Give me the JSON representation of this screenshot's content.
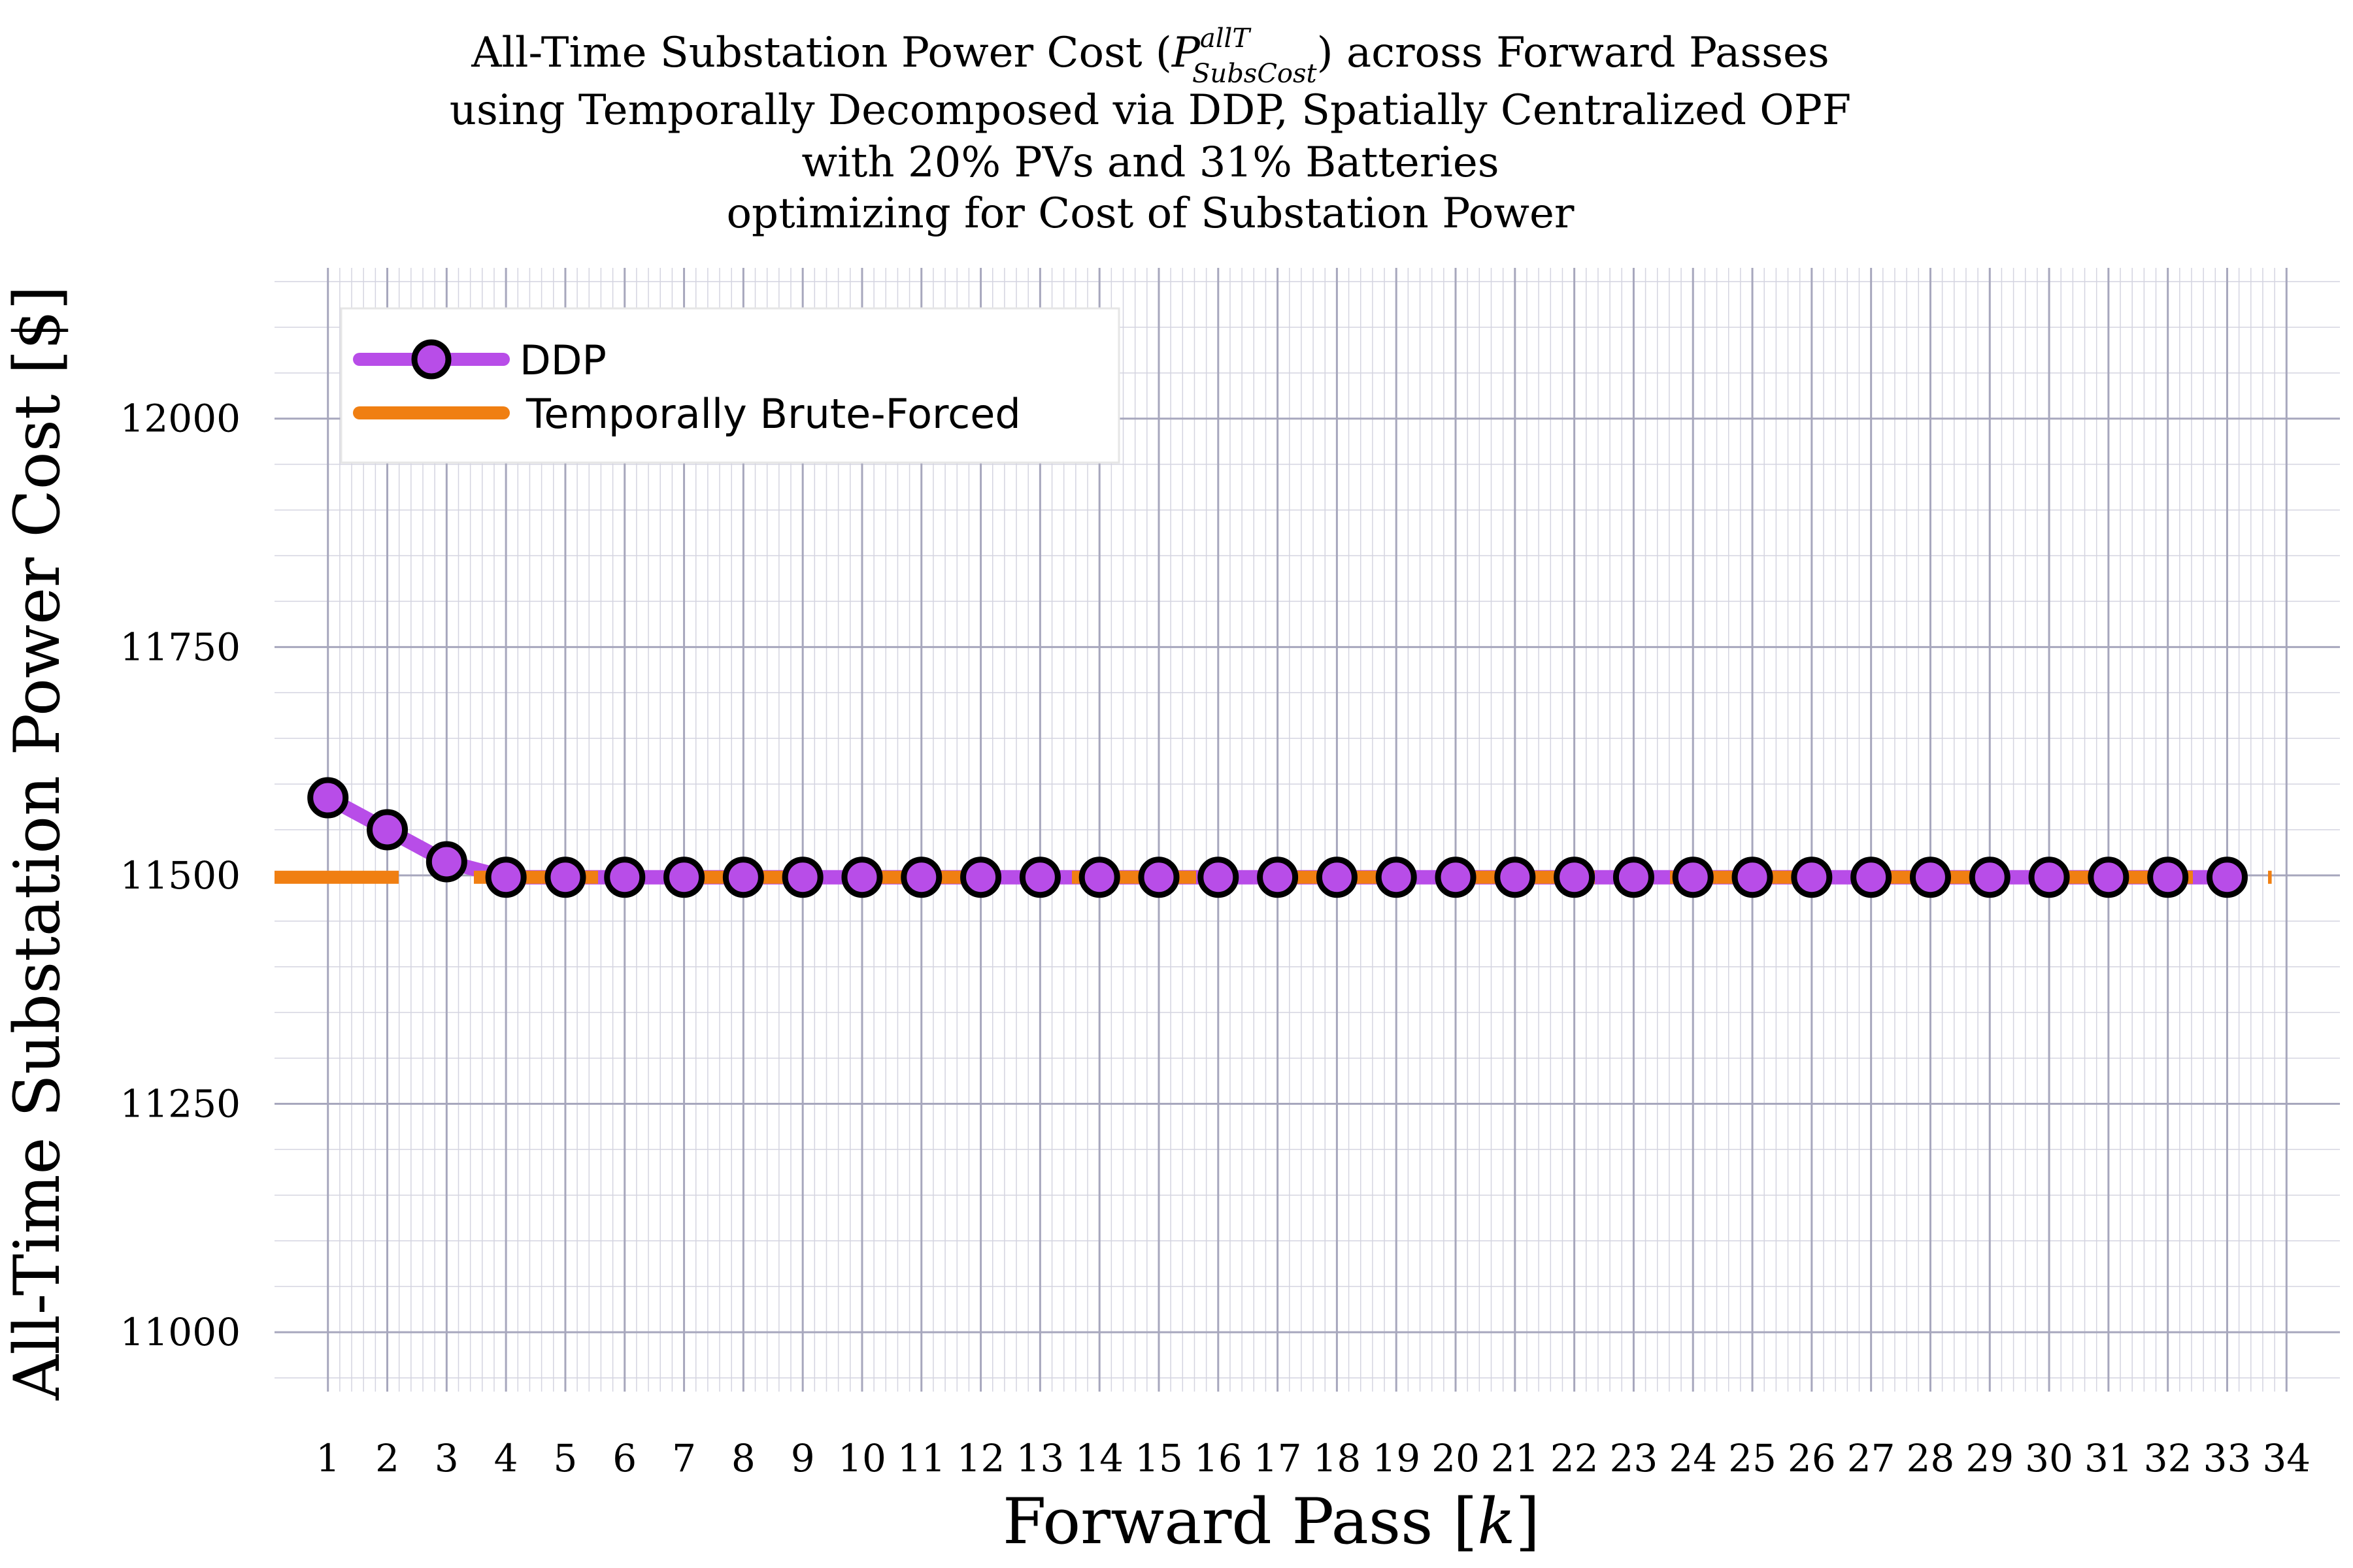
{
  "chart_data": {
    "type": "line",
    "title": {
      "line1_pre": "All-Time Substation Power Cost (",
      "symbol": "P",
      "superscript": "allT",
      "subscript": "SubsCost",
      "line1_post": ") across Forward Passes",
      "line2": "using Temporally Decomposed via DDP, Spatially Centralized OPF",
      "line3": "with 20% PVs and 31% Batteries",
      "line4": "optimizing for Cost of Substation Power"
    },
    "xlabel": {
      "text": "Forward Pass [",
      "var": "k",
      "close": "]"
    },
    "ylabel": "All-Time Substation Power Cost [$]",
    "xlim": [
      0.1,
      34.9
    ],
    "ylim": [
      10935,
      12165
    ],
    "x_ticks": [
      1,
      2,
      3,
      4,
      5,
      6,
      7,
      8,
      9,
      10,
      11,
      12,
      13,
      14,
      15,
      16,
      17,
      18,
      19,
      20,
      21,
      22,
      23,
      24,
      25,
      26,
      27,
      28,
      29,
      30,
      31,
      32,
      33,
      34
    ],
    "y_ticks": [
      11000,
      11250,
      11500,
      11750,
      12000
    ],
    "grid": true,
    "legend_position": "top-left",
    "x": [
      1,
      2,
      3,
      4,
      5,
      6,
      7,
      8,
      9,
      10,
      11,
      12,
      13,
      14,
      15,
      16,
      17,
      18,
      19,
      20,
      21,
      22,
      23,
      24,
      25,
      26,
      27,
      28,
      29,
      30,
      31,
      32,
      33
    ],
    "series": [
      {
        "name": "DDP",
        "color": "#b84de8",
        "marker": "circle",
        "values": [
          11585,
          11550,
          11515,
          11498,
          11498,
          11498,
          11498,
          11498,
          11498,
          11498,
          11498,
          11498,
          11498,
          11498,
          11498,
          11498,
          11498,
          11498,
          11498,
          11498,
          11498,
          11498,
          11498,
          11498,
          11498,
          11498,
          11498,
          11498,
          11498,
          11498,
          11498,
          11498,
          11498
        ]
      },
      {
        "name": "Temporally Brute-Forced",
        "color": "#f07f12",
        "style": "dashed",
        "value": 11498
      }
    ]
  }
}
